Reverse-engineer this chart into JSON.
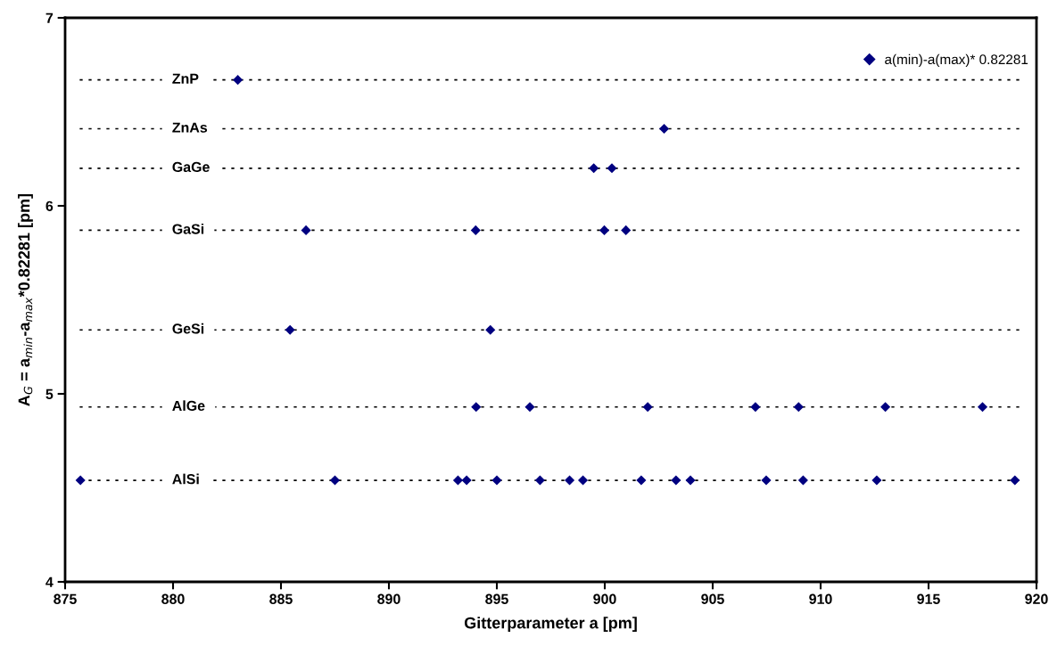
{
  "chart_data": {
    "type": "scatter",
    "xlabel": "Gitterparameter a [pm]",
    "ylabel": "A$_{G}$ = a$_{min}$-a$_{max}$*0.82281 [pm]",
    "series": [
      {
        "name": "a(min)-a(max)* 0.82281",
        "color": "#000080",
        "x": [
          883.0,
          902.75,
          899.49,
          900.33,
          886.16,
          894.02,
          899.98,
          900.98,
          885.42,
          894.7,
          894.04,
          896.53,
          901.99,
          906.98,
          908.98,
          913.0,
          917.5,
          875.71,
          887.5,
          893.2,
          893.6,
          895.0,
          897.0,
          898.37,
          898.99,
          901.69,
          903.3,
          903.97,
          907.48,
          909.19,
          912.6,
          919.0
        ],
        "values": [
          6.67,
          6.41,
          6.2,
          6.2,
          5.87,
          5.87,
          5.87,
          5.87,
          5.34,
          5.34,
          4.93,
          4.93,
          4.93,
          4.93,
          4.93,
          4.93,
          4.93,
          4.54,
          4.54,
          4.54,
          4.54,
          4.54,
          4.54,
          4.54,
          4.54,
          4.54,
          4.54,
          4.54,
          4.54,
          4.54,
          4.54,
          4.54
        ]
      }
    ],
    "ref_lines": [
      {
        "axis": "y",
        "value": 6.67,
        "label": "ZnP",
        "color": "#000000",
        "line_style": "dotted"
      },
      {
        "axis": "y",
        "value": 6.41,
        "label": "ZnAs",
        "color": "#000000",
        "line_style": "dotted"
      },
      {
        "axis": "y",
        "value": 6.2,
        "label": "GaGe",
        "color": "#000000",
        "line_style": "dotted"
      },
      {
        "axis": "y",
        "value": 5.87,
        "label": "GaSi",
        "color": "#000000",
        "line_style": "dotted"
      },
      {
        "axis": "y",
        "value": 5.34,
        "label": "GeSi",
        "color": "#000000",
        "line_style": "dotted"
      },
      {
        "axis": "y",
        "value": 4.93,
        "label": "AlGe",
        "color": "#000000",
        "line_style": "dotted"
      },
      {
        "axis": "y",
        "value": 4.54,
        "label": "AlSi",
        "color": "#000000",
        "line_style": "dotted"
      }
    ],
    "xlim": [
      875,
      920
    ],
    "xticks": [
      875,
      880,
      885,
      890,
      895,
      900,
      905,
      910,
      915,
      920
    ],
    "ylim": [
      4,
      7
    ],
    "yticks": [
      4,
      5,
      6,
      7
    ],
    "marker": "diamond",
    "grid": false,
    "legend": "top right"
  }
}
